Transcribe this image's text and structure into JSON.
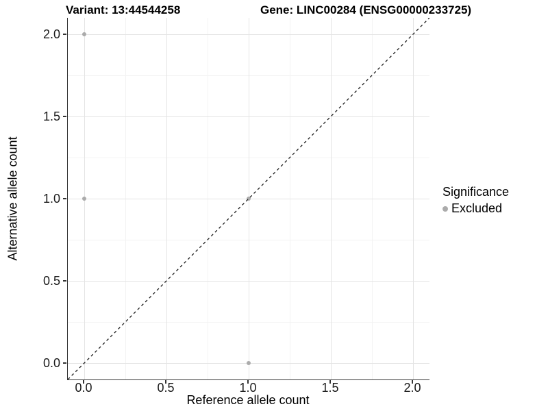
{
  "chart_data": {
    "type": "scatter",
    "title_left": "Variant: 13:44544258",
    "title_right": "Gene: LINC00284 (ENSG00000233725)",
    "xlabel": "Reference allele count",
    "ylabel": "Alternative allele count",
    "xlim": [
      -0.1,
      2.1
    ],
    "ylim": [
      -0.1,
      2.1
    ],
    "x_ticks": [
      0.0,
      0.5,
      1.0,
      1.5,
      2.0
    ],
    "x_tick_labels": [
      "0.0",
      "0.5",
      "1.0",
      "1.5",
      "2.0"
    ],
    "y_ticks": [
      0.0,
      0.5,
      1.0,
      1.5,
      2.0
    ],
    "y_tick_labels": [
      "0.0",
      "0.5",
      "1.0",
      "1.5",
      "2.0"
    ],
    "x_minor_ticks": [
      0.25,
      0.75,
      1.25,
      1.75
    ],
    "y_minor_ticks": [
      0.25,
      0.75,
      1.25,
      1.75
    ],
    "grid": true,
    "legend_position": "right",
    "identity_line": {
      "style": "dashed",
      "from": [
        -0.1,
        -0.1
      ],
      "to": [
        2.1,
        2.1
      ]
    },
    "series": [
      {
        "name": "Excluded",
        "color": "#ababab",
        "points": [
          [
            0,
            1
          ],
          [
            0,
            2
          ],
          [
            1,
            0
          ],
          [
            1,
            1
          ]
        ]
      }
    ],
    "legend": {
      "title": "Significance",
      "items": [
        {
          "label": "Excluded",
          "color": "#ababab"
        }
      ]
    },
    "colors": {
      "grid_major": "#e4e4e4",
      "grid_minor": "#f3f3f3",
      "axis_line": "#333333",
      "identity_line": "#1a1a1a",
      "point": "#ababab"
    }
  }
}
